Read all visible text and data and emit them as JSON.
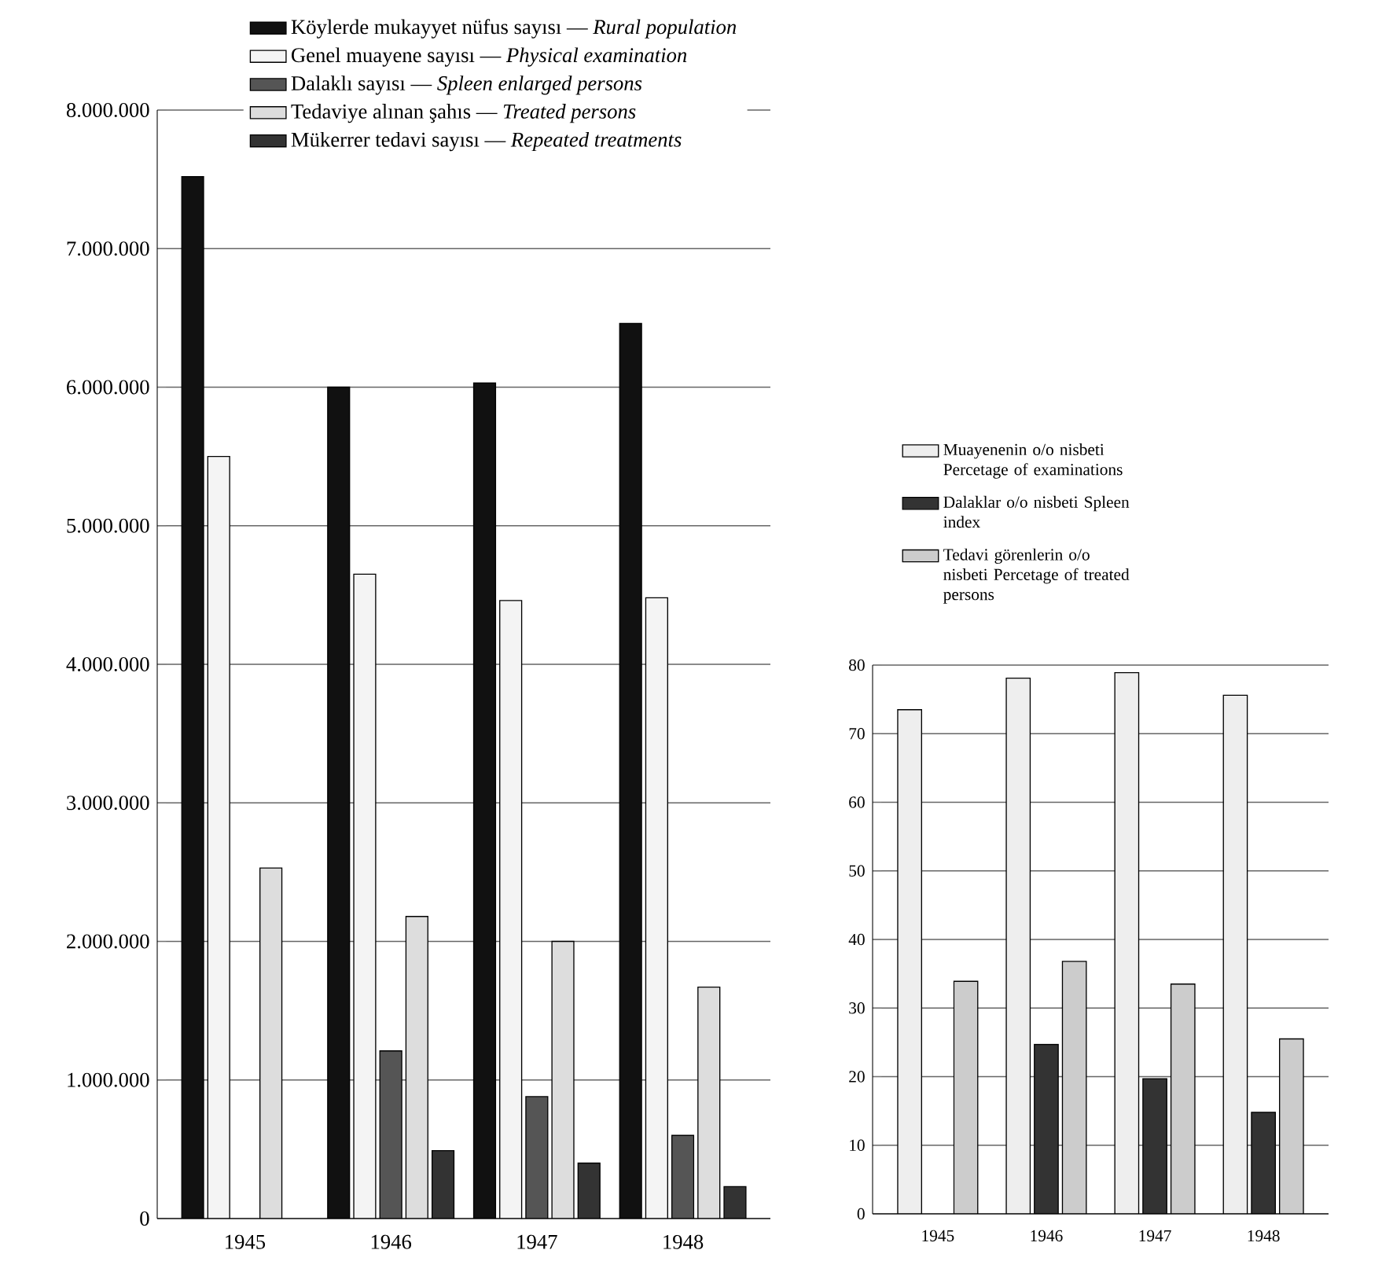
{
  "chart_data": [
    {
      "type": "bar",
      "categories": [
        "1945",
        "1946",
        "1947",
        "1948"
      ],
      "series": [
        {
          "name": "Köylerde mukayyet nüfus sayısı — *Rural population*",
          "color": "#111111",
          "values": [
            7520000,
            6000000,
            6030000,
            6460000
          ]
        },
        {
          "name": "Genel muayene sayısı — *Physical examination*",
          "color": "#f4f4f4",
          "values": [
            5500000,
            4650000,
            4460000,
            4480000
          ]
        },
        {
          "name": "Dalaklı sayısı — *Spleen enlarged persons*",
          "color": "#555555",
          "values": [
            null,
            1210000,
            880000,
            600000
          ]
        },
        {
          "name": "Tedaviye alınan şahıs — *Treated persons*",
          "color": "#dddddd",
          "values": [
            2530000,
            2180000,
            2000000,
            1670000
          ]
        },
        {
          "name": "Mükerrer tedavi sayısı — *Repeated treatments*",
          "color": "#333333",
          "values": [
            null,
            490000,
            400000,
            230000
          ]
        }
      ],
      "ylim": [
        0,
        8000000
      ],
      "yticks": [
        0,
        {
          "value": 1000000,
          "label": "1.000.000"
        },
        {
          "value": 2000000,
          "label": "2.000.000"
        },
        {
          "value": 3000000,
          "label": "3.000.000"
        },
        {
          "value": 4000000,
          "label": "4.000.000"
        },
        {
          "value": 5000000,
          "label": "5.000.000"
        },
        {
          "value": 6000000,
          "label": "6.000.000"
        },
        {
          "value": 7000000,
          "label": "7.000.000"
        },
        {
          "value": 8000000,
          "label": "8.000.000"
        }
      ],
      "grid": "y",
      "legend": "top"
    },
    {
      "type": "bar",
      "categories": [
        "1945",
        "1946",
        "1947",
        "1948"
      ],
      "series": [
        {
          "name": "Muayenenin o/o nisbeti Percetage of examinations",
          "color": "#eeeeee",
          "values": [
            73.5,
            78.1,
            78.9,
            75.6
          ]
        },
        {
          "name": "Dalaklar o/o nisbeti Spleen index",
          "color": "#333333",
          "values": [
            null,
            24.7,
            19.7,
            14.8
          ]
        },
        {
          "name": "Tedavi görenlerin o/o nisbeti Percetage of treated persons",
          "color": "#cccccc",
          "values": [
            33.9,
            36.8,
            33.5,
            25.5
          ]
        }
      ],
      "ylim": [
        0,
        80
      ],
      "yticks": [
        0,
        10,
        20,
        30,
        40,
        50,
        60,
        70,
        80
      ],
      "grid": "y",
      "legend": "top"
    }
  ]
}
